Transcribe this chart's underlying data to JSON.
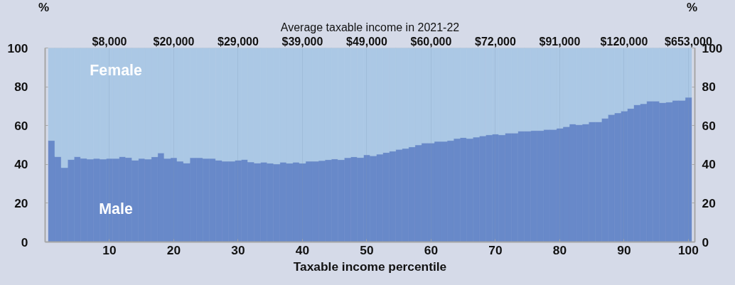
{
  "chart_data": {
    "type": "bar",
    "stacked": true,
    "xlabel": "Taxable income percentile",
    "x2label": "Average taxable income in 2021-22",
    "ylabel": "%",
    "y2label": "%",
    "x": [
      1,
      2,
      3,
      4,
      5,
      6,
      7,
      8,
      9,
      10,
      11,
      12,
      13,
      14,
      15,
      16,
      17,
      18,
      19,
      20,
      21,
      22,
      23,
      24,
      25,
      26,
      27,
      28,
      29,
      30,
      31,
      32,
      33,
      34,
      35,
      36,
      37,
      38,
      39,
      40,
      41,
      42,
      43,
      44,
      45,
      46,
      47,
      48,
      49,
      50,
      51,
      52,
      53,
      54,
      55,
      56,
      57,
      58,
      59,
      60,
      61,
      62,
      63,
      64,
      65,
      66,
      67,
      68,
      69,
      70,
      71,
      72,
      73,
      74,
      75,
      76,
      77,
      78,
      79,
      80,
      81,
      82,
      83,
      84,
      85,
      86,
      87,
      88,
      89,
      90,
      91,
      92,
      93,
      94,
      95,
      96,
      97,
      98,
      99,
      100
    ],
    "series": [
      {
        "name": "Male",
        "color": "#6889c9",
        "values": [
          52.3,
          44.0,
          38.3,
          42.5,
          44.0,
          43.1,
          42.7,
          43.0,
          42.7,
          43.0,
          43.0,
          44.0,
          43.5,
          42.1,
          43.0,
          42.7,
          43.9,
          45.9,
          43.0,
          43.4,
          41.6,
          40.7,
          43.4,
          43.4,
          43.0,
          43.0,
          42.1,
          41.6,
          41.6,
          42.1,
          42.5,
          41.2,
          40.7,
          41.1,
          40.6,
          40.2,
          41.1,
          40.6,
          41.1,
          40.6,
          41.6,
          41.6,
          41.9,
          42.4,
          42.8,
          42.4,
          43.4,
          43.9,
          43.5,
          44.9,
          44.4,
          45.2,
          46.1,
          46.8,
          47.7,
          48.2,
          49.0,
          50.0,
          51.0,
          51.0,
          51.8,
          51.8,
          52.3,
          53.3,
          53.8,
          53.3,
          54.0,
          54.7,
          55.2,
          55.6,
          55.2,
          56.1,
          56.1,
          57.1,
          57.1,
          57.4,
          57.4,
          58.0,
          58.0,
          58.6,
          59.4,
          60.8,
          60.4,
          60.8,
          61.9,
          61.9,
          63.7,
          65.7,
          66.5,
          67.5,
          68.8,
          70.7,
          71.2,
          72.6,
          72.6,
          71.8,
          72.1,
          73.0,
          73.0,
          74.5
        ]
      },
      {
        "name": "Female",
        "color": "#abc8e5",
        "values": [
          47.7,
          56.0,
          61.7,
          57.5,
          56.0,
          56.9,
          57.3,
          57.0,
          57.3,
          57.0,
          57.0,
          56.0,
          56.5,
          57.9,
          57.0,
          57.3,
          56.1,
          54.1,
          57.0,
          56.6,
          58.4,
          59.3,
          56.6,
          56.6,
          57.0,
          57.0,
          57.9,
          58.4,
          58.4,
          57.9,
          57.5,
          58.8,
          59.3,
          58.9,
          59.4,
          59.8,
          58.9,
          59.4,
          58.9,
          59.4,
          58.4,
          58.4,
          58.1,
          57.6,
          57.2,
          57.6,
          56.6,
          56.1,
          56.5,
          55.1,
          55.6,
          54.8,
          53.9,
          53.2,
          52.3,
          51.8,
          51.0,
          50.0,
          49.0,
          49.0,
          48.2,
          48.2,
          47.7,
          46.7,
          46.2,
          46.7,
          46.0,
          45.3,
          44.8,
          44.4,
          44.8,
          43.9,
          43.9,
          42.9,
          42.9,
          42.6,
          42.6,
          42.0,
          42.0,
          41.4,
          40.6,
          39.2,
          39.6,
          39.2,
          38.1,
          38.1,
          36.3,
          34.3,
          33.5,
          32.5,
          31.2,
          29.3,
          28.8,
          27.4,
          27.4,
          28.2,
          27.9,
          27.0,
          27.0,
          25.5
        ]
      }
    ],
    "xlim": [
      0,
      101
    ],
    "xticks": [
      10,
      20,
      30,
      40,
      50,
      60,
      70,
      80,
      90,
      100
    ],
    "annotations": [
      "$8,000",
      "$20,000",
      "$29,000",
      "$39,000",
      "$49,000",
      "$60,000",
      "$72,000",
      "$91,000",
      "$120,000",
      "$653,000"
    ],
    "ylim": [
      0,
      100
    ],
    "yticks": [
      0,
      20,
      40,
      60,
      80,
      100
    ],
    "y2lim": [
      0,
      100
    ],
    "y2ticks": [
      0,
      20,
      40,
      60,
      80,
      100
    ],
    "grid": "x",
    "legend": false
  }
}
